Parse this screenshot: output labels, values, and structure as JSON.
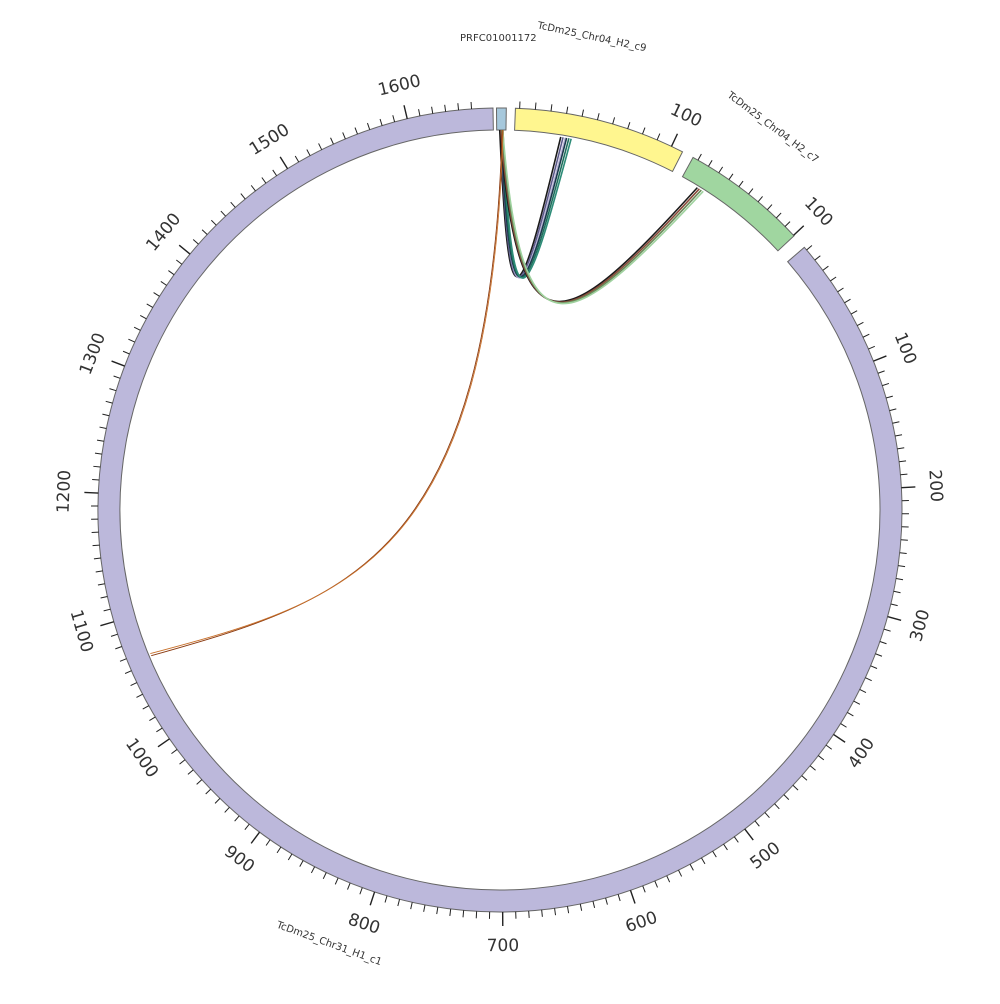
{
  "diagram": {
    "type": "circos",
    "segments": [
      {
        "id": "prfc",
        "name": "PRFC01001172",
        "color": "#a6c8dc",
        "ticks_labels": []
      },
      {
        "id": "chr04_c9",
        "name": "TcDm25_Chr04_H2_c9",
        "color": "#fff68f",
        "tick_labels": [
          "100"
        ]
      },
      {
        "id": "chr04_c7",
        "name": "TcDm25_Chr04_H2_c7",
        "color": "#a0d6a0",
        "tick_labels": [
          "100"
        ]
      },
      {
        "id": "chr31_c1",
        "name": "TcDm25_Chr31_H1_c1",
        "color": "#bcb8db",
        "tick_labels": [
          "100",
          "200",
          "300",
          "400",
          "500",
          "600",
          "700",
          "800",
          "900",
          "1000",
          "1100",
          "1200",
          "1300",
          "1400",
          "1500",
          "1600"
        ]
      }
    ],
    "links": [
      {
        "from": "PRFC01001172",
        "to": "TcDm25_Chr04_H2_c9",
        "colors": [
          "#1a1a1a",
          "#5c5a8a",
          "#b6b0d6"
        ]
      },
      {
        "from": "PRFC01001172",
        "to": "TcDm25_Chr04_H2_c9",
        "colors": [
          "#1a3a4a",
          "#1f6e5c",
          "#2e8c78"
        ]
      },
      {
        "from": "PRFC01001172",
        "to": "TcDm25_Chr04_H2_c7",
        "colors": [
          "#1a1a1a",
          "#8a4a3a",
          "#6a8a5a",
          "#9fd29f"
        ]
      },
      {
        "from": "PRFC01001172",
        "to": "TcDm25_Chr31_H1_c1",
        "colors": [
          "#8a3a10",
          "#c8702a"
        ]
      }
    ]
  }
}
